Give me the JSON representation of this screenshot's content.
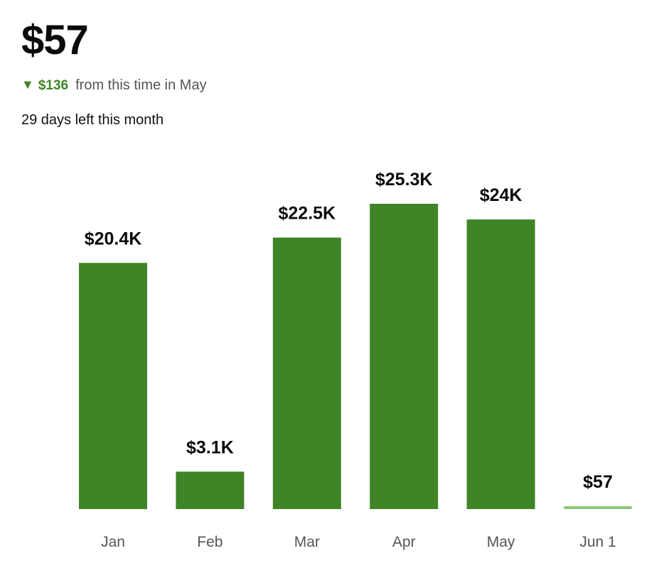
{
  "summary": {
    "total": "$57",
    "change_icon": "down-triangle-icon",
    "change_symbol": "▼",
    "change_value": "$136",
    "change_text": "from this time in May",
    "days_left": "29 days left this month"
  },
  "colors": {
    "bar": "#3f8528",
    "bar_current": "#8dc67a",
    "accent_text": "#3f8528"
  },
  "chart_data": {
    "type": "bar",
    "categories": [
      "Jan",
      "Feb",
      "Mar",
      "Apr",
      "May",
      "Jun 1"
    ],
    "values": [
      20400,
      3100,
      22500,
      25300,
      24000,
      57
    ],
    "value_labels": [
      "$20.4K",
      "$3.1K",
      "$22.5K",
      "$25.3K",
      "$24K",
      "$57"
    ],
    "current_index": 5,
    "title": "",
    "xlabel": "",
    "ylabel": "",
    "ylim": [
      0,
      25300
    ],
    "grid": false
  }
}
